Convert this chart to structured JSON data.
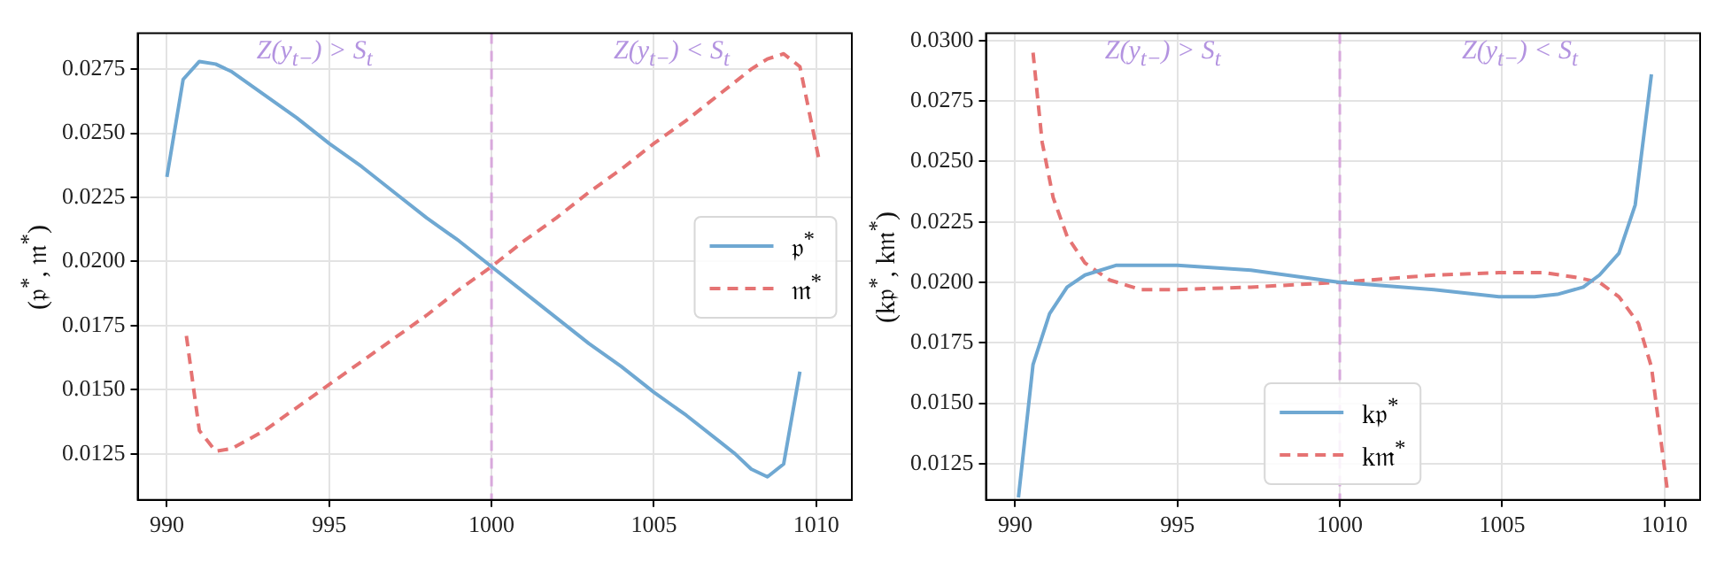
{
  "chart_data": [
    {
      "type": "line",
      "ylabel": "(𝔭$^{*}$, 𝔪$^{*}$)",
      "xlim": [
        989.1,
        1011.1
      ],
      "xticks": [
        990,
        995,
        1000,
        1005,
        1010
      ],
      "ylim": [
        0.0107,
        0.0289
      ],
      "yticks": [
        0.0125,
        {
          "value": 0.015,
          "label": "0.0150"
        },
        0.0175,
        {
          "value": 0.02,
          "label": "0.0200"
        },
        0.0225,
        {
          "value": 0.025,
          "label": "0.0250"
        },
        0.0275
      ],
      "grid": true,
      "legend": "right",
      "ref_lines": [
        {
          "axis": "x",
          "value": 1000,
          "color": "#d8a8dc",
          "line_style": "dashed"
        }
      ],
      "annotations": [
        "Z(y$_{t−}$) > S$_{t}$",
        "Z(y$_{t−}$) < S$_{t}$"
      ],
      "series": [
        {
          "name": "𝔭$^{*}$",
          "color": "#6fa8d2",
          "line_style": "solid",
          "x": [
            990.0,
            990.5,
            991,
            991.5,
            992,
            993,
            994,
            995,
            996,
            997,
            998,
            999,
            1000,
            1001,
            1002,
            1003,
            1004,
            1005,
            1006,
            1007,
            1007.5,
            1008,
            1008.5,
            1009,
            1009.5
          ],
          "values": [
            0.0233,
            0.0271,
            0.0278,
            0.0277,
            0.0274,
            0.0265,
            0.0256,
            0.0246,
            0.0237,
            0.0227,
            0.0217,
            0.0208,
            0.0198,
            0.0188,
            0.0178,
            0.0168,
            0.0159,
            0.0149,
            0.014,
            0.013,
            0.0125,
            0.0119,
            0.0116,
            0.0121,
            0.0157
          ]
        },
        {
          "name": "𝔪$^{*}$",
          "color": "#e57373",
          "line_style": "dashed",
          "x": [
            990.6,
            991,
            991.5,
            992,
            993,
            994,
            995,
            996,
            997,
            998,
            999,
            1000,
            1001,
            1002,
            1003,
            1004,
            1005,
            1006,
            1007,
            1008,
            1008.5,
            1009,
            1009.5,
            1010.1
          ],
          "values": [
            0.0171,
            0.0134,
            0.0126,
            0.0127,
            0.0134,
            0.0143,
            0.0152,
            0.0161,
            0.017,
            0.0179,
            0.0189,
            0.0198,
            0.0208,
            0.0217,
            0.0227,
            0.0236,
            0.0246,
            0.0255,
            0.0265,
            0.0275,
            0.0279,
            0.0281,
            0.0276,
            0.0239
          ]
        }
      ]
    },
    {
      "type": "line",
      "ylabel": "(k𝔭$^{*}$, k𝔪$^{*}$)",
      "xlim": [
        989.1,
        1011.1
      ],
      "xticks": [
        990,
        995,
        1000,
        1005,
        1010
      ],
      "ylim": [
        0.011,
        0.0303
      ],
      "yticks": [
        0.0125,
        {
          "value": 0.015,
          "label": "0.0150"
        },
        0.0175,
        {
          "value": 0.02,
          "label": "0.0200"
        },
        0.0225,
        {
          "value": 0.025,
          "label": "0.0250"
        },
        0.0275,
        {
          "value": 0.03,
          "label": "0.0300"
        }
      ],
      "grid": true,
      "legend": "bottom",
      "ref_lines": [
        {
          "axis": "x",
          "value": 1000,
          "color": "#d8a8dc",
          "line_style": "dashed"
        }
      ],
      "annotations": [
        "Z(y$_{t−}$) > S$_{t}$",
        "Z(y$_{t−}$) < S$_{t}$"
      ],
      "series": [
        {
          "name": "k𝔭$^{*}$",
          "color": "#6fa8d2",
          "line_style": "solid",
          "x": [
            990.1,
            990.55,
            991.06,
            991.6,
            992.15,
            993.1,
            993.86,
            995,
            997.26,
            1000,
            1002.9,
            1004.9,
            1006,
            1006.7,
            1007.5,
            1008,
            1008.6,
            1009.1,
            1009.6
          ],
          "values": [
            0.0111,
            0.0166,
            0.0187,
            0.0198,
            0.0203,
            0.0207,
            0.0207,
            0.0207,
            0.0205,
            0.02,
            0.0197,
            0.0194,
            0.0194,
            0.0195,
            0.0198,
            0.0203,
            0.0212,
            0.0232,
            0.0286
          ]
        },
        {
          "name": "k𝔪$^{*}$",
          "color": "#e57373",
          "line_style": "dashed",
          "x": [
            990.55,
            990.83,
            991.17,
            991.6,
            992.15,
            992.9,
            993.86,
            995,
            997.26,
            1000,
            1002.9,
            1004.9,
            1006.3,
            1007.3,
            1008,
            1008.6,
            1009.2,
            1009.6,
            1010.1
          ],
          "values": [
            0.0295,
            0.0258,
            0.0235,
            0.0219,
            0.0208,
            0.0201,
            0.0197,
            0.0197,
            0.0198,
            0.02,
            0.0203,
            0.0204,
            0.0204,
            0.0202,
            0.02,
            0.0194,
            0.0183,
            0.0165,
            0.0113
          ]
        }
      ]
    }
  ]
}
